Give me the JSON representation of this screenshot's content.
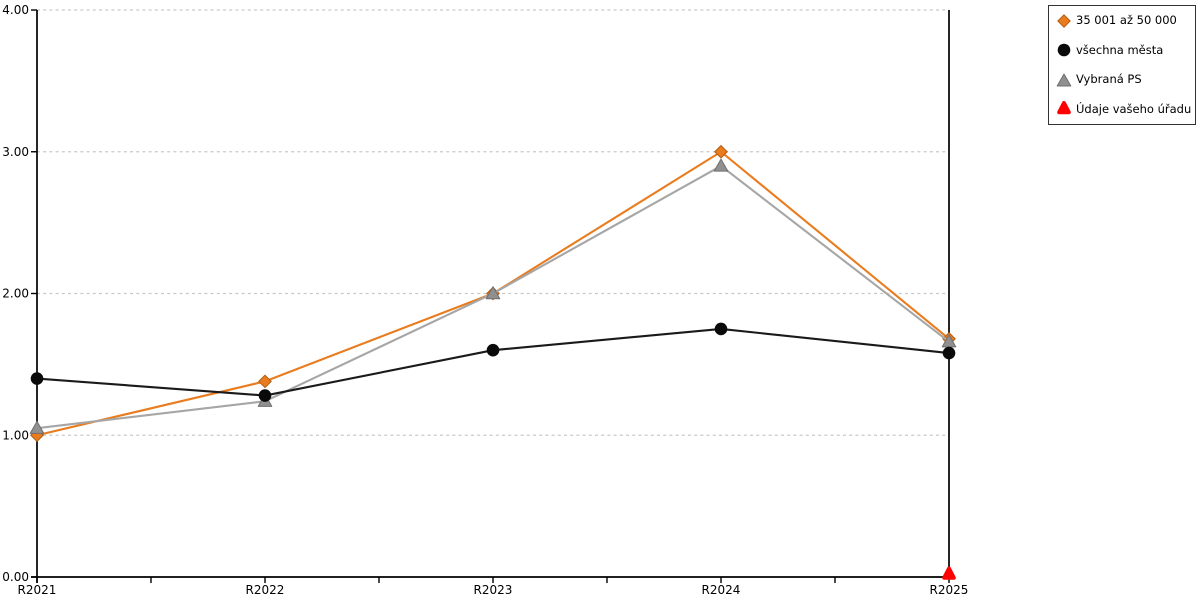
{
  "chart_data": {
    "type": "line",
    "title": "",
    "xlabel": "",
    "ylabel": "",
    "categories": [
      "R2021",
      "R2022",
      "R2023",
      "R2024",
      "R2025"
    ],
    "series": [
      {
        "name": "35 001 až 50 000",
        "marker": "diamond",
        "color": "#e87c1e",
        "marker_color": "#e87c1e",
        "marker_edge": "#b35c0f",
        "values": [
          1.0,
          1.38,
          2.0,
          3.0,
          1.68
        ]
      },
      {
        "name": "všechna města",
        "marker": "circle",
        "color": "#1a1a1a",
        "marker_color": "#0a0a0a",
        "marker_edge": "#0a0a0a",
        "values": [
          1.4,
          1.28,
          1.6,
          1.75,
          1.58
        ]
      },
      {
        "name": "Vybraná PS",
        "marker": "triangle",
        "color": "#a6a6a6",
        "marker_color": "#909090",
        "marker_edge": "#6f6f6f",
        "values": [
          1.05,
          1.24,
          2.0,
          2.9,
          1.66
        ]
      },
      {
        "name": "Údaje vašeho úřadu",
        "marker": "triangle-rounded",
        "color": "#ff0000",
        "marker_color": "#ff0000",
        "marker_edge": "#ff0000",
        "values": [
          null,
          null,
          null,
          null,
          0.0
        ]
      }
    ],
    "ylim": [
      0,
      4
    ],
    "ytick_labels": [
      "0.00",
      "1.00",
      "2.00",
      "3.00",
      "4.00"
    ],
    "grid": "horizontal-dashed",
    "gridline_color": "#c9c9c9",
    "axis_color": "#000000",
    "legend_position": "top-right",
    "draw_order": [
      0,
      2,
      1,
      3
    ]
  }
}
